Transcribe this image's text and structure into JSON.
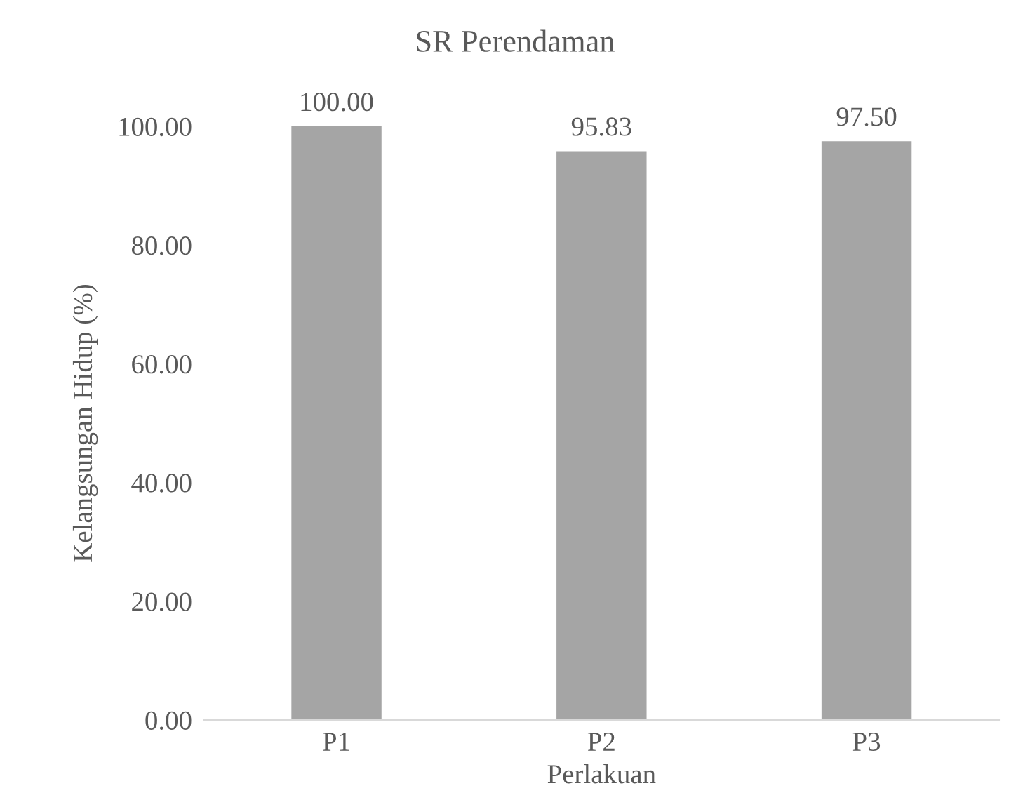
{
  "chart_data": {
    "type": "bar",
    "title": "SR Perendaman",
    "xlabel": "Perlakuan",
    "ylabel": "Kelangsungan Hidup (%)",
    "categories": [
      "P1",
      "P2",
      "P3"
    ],
    "values": [
      100.0,
      95.83,
      97.5
    ],
    "value_labels": [
      "100.00",
      "95.83",
      "97.50"
    ],
    "color": "#a5a5a5",
    "ylim": [
      0,
      100
    ],
    "yticks": [
      {
        "value": 0,
        "label": "0.00"
      },
      {
        "value": 20,
        "label": "20.00"
      },
      {
        "value": 40,
        "label": "40.00"
      },
      {
        "value": 60,
        "label": "60.00"
      },
      {
        "value": 80,
        "label": "80.00"
      },
      {
        "value": 100,
        "label": "100.00"
      }
    ],
    "grid": false,
    "legend": false
  }
}
